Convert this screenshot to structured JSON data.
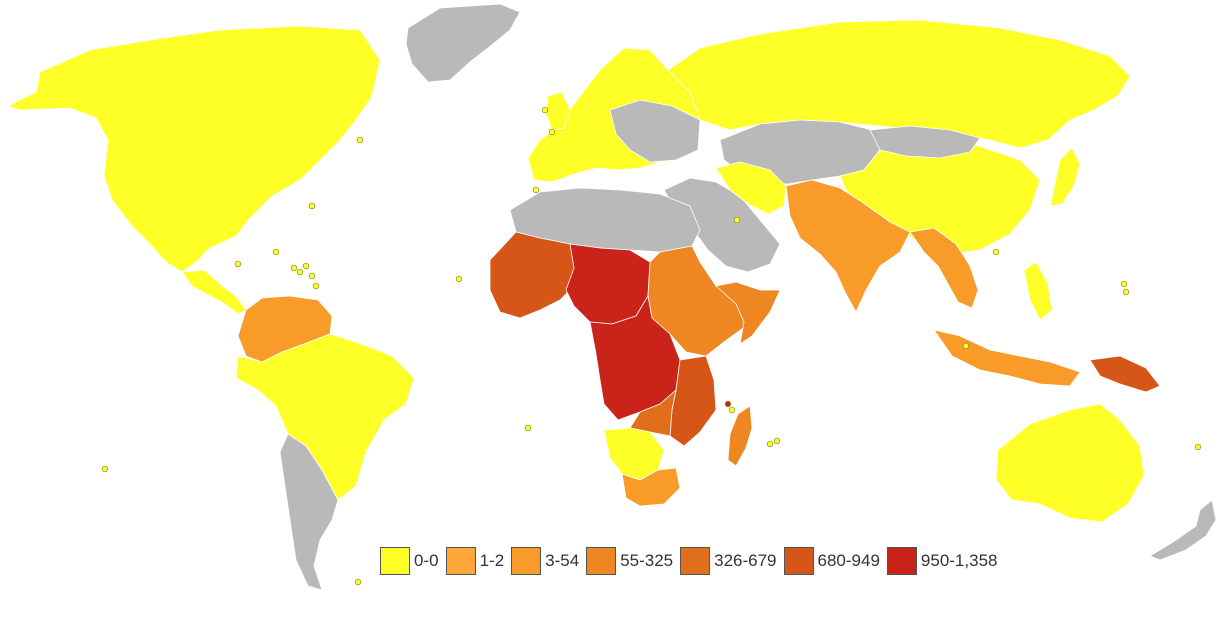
{
  "colors": {
    "no_data": "#b9b9b9",
    "c0": "#ffff28",
    "c1": "#ffa83a",
    "c2": "#f89b28",
    "c3": "#ee8722",
    "c4": "#e06e1c",
    "c5": "#d55617",
    "c6": "#c9231a"
  },
  "legend": [
    {
      "label": "0-0",
      "color": "#ffff28"
    },
    {
      "label": "1-2",
      "color": "#ffa83a"
    },
    {
      "label": "3-54",
      "color": "#f89b28"
    },
    {
      "label": "55-325",
      "color": "#ee8722"
    },
    {
      "label": "326-679",
      "color": "#e06e1c"
    },
    {
      "label": "680-949",
      "color": "#d55617"
    },
    {
      "label": "950-1,358",
      "color": "#c9231a"
    }
  ]
}
